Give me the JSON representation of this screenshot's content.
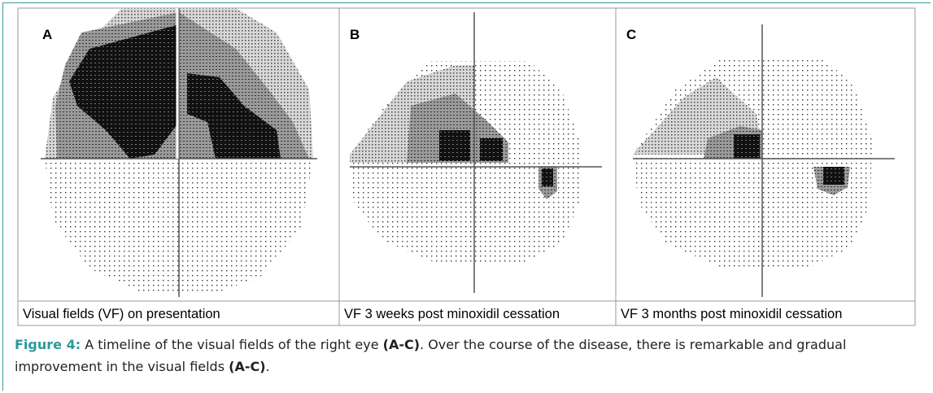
{
  "panels": [
    {
      "letter": "A",
      "caption": "Visual fields (VF) on presentation"
    },
    {
      "letter": "B",
      "caption": "VF 3 weeks post minoxidil cessation"
    },
    {
      "letter": "C",
      "caption": "VF 3 months post minoxidil cessation"
    }
  ],
  "figure_caption": {
    "label": "Figure 4:",
    "parts": [
      "A timeline of the visual fields of the right eye ",
      "(A-C)",
      ". Over the course of the disease, there is remarkable and gradual improvement in the visual fields ",
      "(A-C)",
      "."
    ]
  }
}
